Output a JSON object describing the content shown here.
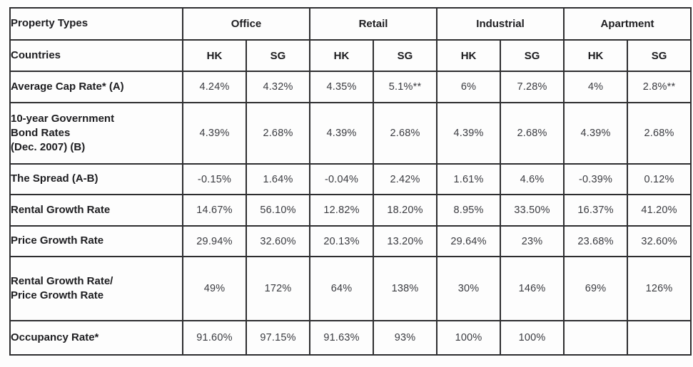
{
  "table": {
    "header": {
      "property_types_label": "Property Types",
      "countries_label": "Countries",
      "groups": [
        "Office",
        "Retail",
        "Industrial",
        "Apartment"
      ],
      "countries": [
        "HK",
        "SG",
        "HK",
        "SG",
        "HK",
        "SG",
        "HK",
        "SG"
      ]
    },
    "rows": [
      {
        "label": "Average Cap Rate* (A)",
        "values": [
          "4.24%",
          "4.32%",
          "4.35%",
          "5.1%**",
          "6%",
          "7.28%",
          "4%",
          "2.8%**"
        ]
      },
      {
        "label": "10-year Government\nBond Rates\n(Dec. 2007) (B)",
        "values": [
          "4.39%",
          "2.68%",
          "4.39%",
          "2.68%",
          "4.39%",
          "2.68%",
          "4.39%",
          "2.68%"
        ]
      },
      {
        "label": "The Spread (A-B)",
        "values": [
          "-0.15%",
          "1.64%",
          "-0.04%",
          "2.42%",
          "1.61%",
          "4.6%",
          "-0.39%",
          "0.12%"
        ]
      },
      {
        "label": "Rental Growth Rate",
        "values": [
          "14.67%",
          "56.10%",
          "12.82%",
          "18.20%",
          "8.95%",
          "33.50%",
          "16.37%",
          "41.20%"
        ]
      },
      {
        "label": "Price Growth Rate",
        "values": [
          "29.94%",
          "32.60%",
          "20.13%",
          "13.20%",
          "29.64%",
          "23%",
          "23.68%",
          "32.60%"
        ]
      },
      {
        "label": "Rental Growth Rate/\nPrice Growth Rate",
        "values": [
          "49%",
          "172%",
          "64%",
          "138%",
          "30%",
          "146%",
          "69%",
          "126%"
        ]
      },
      {
        "label": "Occupancy Rate*",
        "values": [
          "91.60%",
          "97.15%",
          "91.63%",
          "93%",
          "100%",
          "100%",
          "",
          ""
        ]
      }
    ]
  }
}
